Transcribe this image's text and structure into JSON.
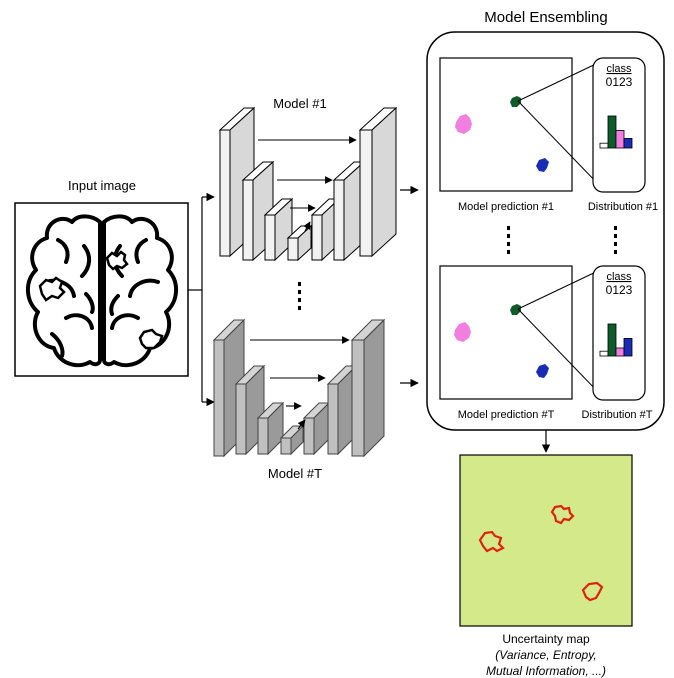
{
  "title": "Model Ensembling",
  "input_label": "Input image",
  "model1_label": "Model #1",
  "modelT_label": "Model #T",
  "pred1_label": "Model prediction #1",
  "predT_label": "Model prediction #T",
  "dist1_label": "Distribution #1",
  "distT_label": "Distribution #T",
  "class_header": "class",
  "class_digits": "0123",
  "uncertainty": {
    "title": "Uncertainty map",
    "line1": "(Variance, Entropy,",
    "line2": "Mutual Information,  ...)"
  },
  "dist1_values": [
    0.15,
    1.0,
    0.55,
    0.3
  ],
  "distT_values": [
    0.15,
    1.0,
    0.25,
    0.55
  ],
  "colors": {
    "class0": "#ffffff",
    "class1": "#0d5c2a",
    "class2": "#f27ee0",
    "class3": "#1a2bb5",
    "blob_pink": "#f27ee0",
    "blob_green": "#0d5c2a",
    "blob_blue": "#1a2bb5",
    "map_bg": "#d3e98a",
    "map_outline": "#e02010",
    "model1_fill": "#f2f2f2",
    "modelT_fill": "#c0c0c0"
  },
  "icons": [
    "brain-icon",
    "unet-icon",
    "arrow-icon"
  ]
}
